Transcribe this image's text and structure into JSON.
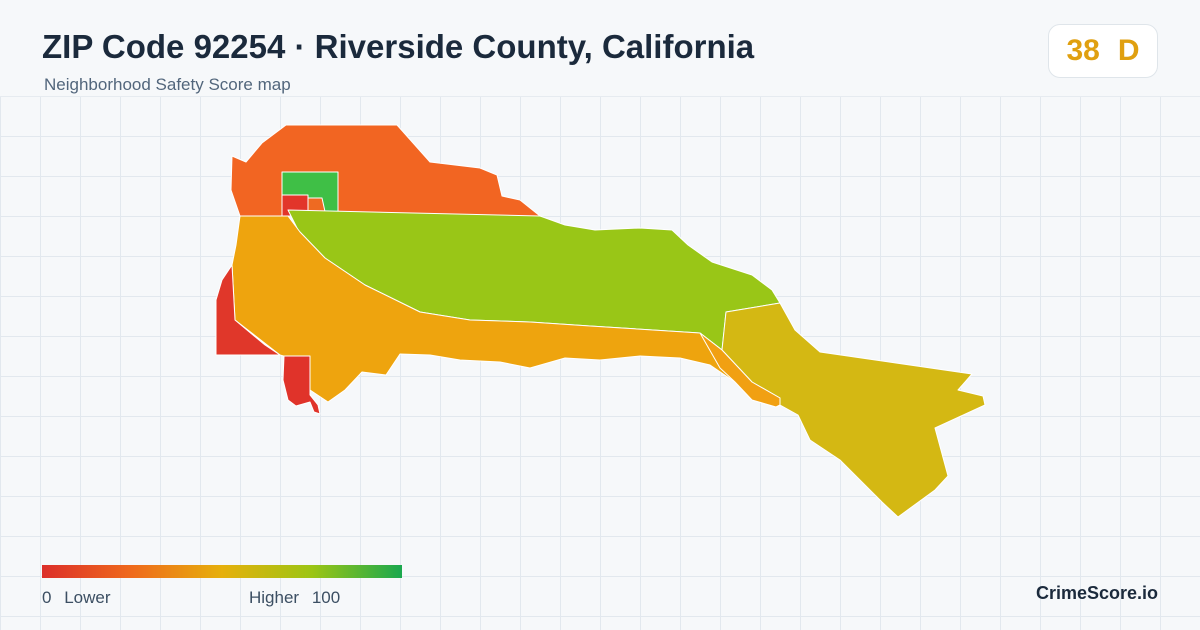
{
  "header": {
    "title": "ZIP Code 92254 · Riverside County, California",
    "subtitle": "Neighborhood Safety Score map"
  },
  "score": {
    "value": "38",
    "grade": "D",
    "color": "#e0a010"
  },
  "legend": {
    "min_value": "0",
    "min_label": "Lower",
    "max_label": "Higher",
    "max_value": "100",
    "colors": [
      "#dc2f2a",
      "#ef6a1c",
      "#e6b00c",
      "#9cc514",
      "#1aa84e"
    ]
  },
  "brand": "CrimeScore.io",
  "map_regions": [
    {
      "name": "north-area",
      "color": "#f26522"
    },
    {
      "name": "north-park",
      "color": "#3fbf46"
    },
    {
      "name": "north-small-red",
      "color": "#e2352a"
    },
    {
      "name": "north-small-orange",
      "color": "#ee6a22"
    },
    {
      "name": "central-green-band",
      "color": "#99c617"
    },
    {
      "name": "south-orange-band",
      "color": "#eea40e"
    },
    {
      "name": "west-red-edge",
      "color": "#e0372a"
    },
    {
      "name": "southwest-red-spur",
      "color": "#e0332a"
    },
    {
      "name": "east-yellow-area",
      "color": "#d4b813"
    },
    {
      "name": "east-orange-sliver",
      "color": "#f1a012"
    }
  ]
}
